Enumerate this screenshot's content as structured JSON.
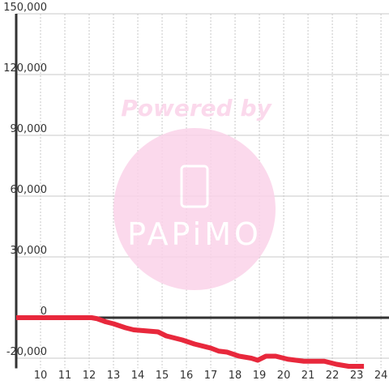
{
  "chart_data": {
    "type": "line",
    "annotations": [
      "Powered by",
      "PAPiMO"
    ],
    "x": [
      9,
      12.1,
      12.33,
      12.67,
      13,
      13.5,
      13.83,
      14.33,
      14.83,
      15.17,
      15.5,
      15.83,
      16.33,
      17,
      17.33,
      17.67,
      18.17,
      18.67,
      18.93,
      19.27,
      19.67,
      20.17,
      20.83,
      21.67,
      22.17,
      22.67,
      23.3
    ],
    "series": [
      {
        "color": "#e8283c",
        "values": [
          0,
          0,
          -500,
          -2000,
          -3000,
          -5000,
          -6000,
          -6500,
          -7000,
          -9000,
          -10000,
          -11000,
          -13000,
          -15000,
          -16500,
          -17000,
          -19000,
          -20000,
          -21000,
          -19000,
          -19000,
          -20500,
          -21500,
          -21500,
          -23000,
          -24000,
          -24000
        ]
      }
    ],
    "xlim": [
      9,
      24.33
    ],
    "xticks": [
      10,
      11,
      12,
      13,
      14,
      15,
      16,
      17,
      18,
      19,
      20,
      21,
      22,
      23,
      24
    ],
    "ylim": [
      -25000,
      150000
    ],
    "yticks": [
      {
        "value": -20000,
        "label": "-20,000"
      },
      0,
      {
        "value": 30000,
        "label": "30,000"
      },
      {
        "value": 60000,
        "label": "60,000"
      },
      {
        "value": 90000,
        "label": "90,000"
      },
      {
        "value": 120000,
        "label": "120,000"
      },
      {
        "value": 150000,
        "label": "150,000"
      }
    ],
    "grid": true
  }
}
